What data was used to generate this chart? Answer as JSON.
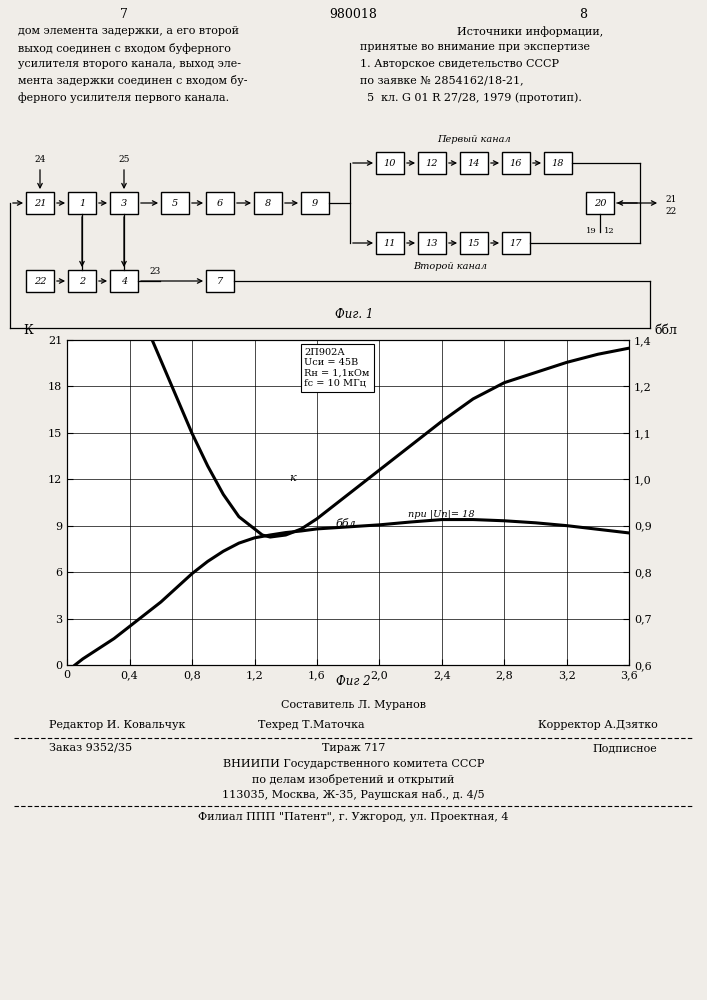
{
  "page_title": "980018",
  "page_left_num": "7",
  "page_right_num": "8",
  "left_text_lines": [
    "дом элемента задержки, а его второй",
    "выход соединен с входом буферного",
    "усилителя второго канала, выход эле-",
    "мента задержки соединен с входом бу-",
    "ферного усилителя первого канала."
  ],
  "right_text_lines": [
    "Источники информации,",
    "принятые во внимание при экспертизе",
    "1. Авторское свидетельство СССР",
    "по заявке № 2854162/18-21,",
    "  5  кл. G 01 R 27/28, 1979 (прототип)."
  ],
  "fig1_caption": "Фиг. 1",
  "fig2_caption": "Фиг 2",
  "graph_annotation": "2П902А\nUси = 45В\nRн = 1,1кОм\nfс = 10 МГц",
  "graph_label_K": "к",
  "graph_label_bbl": "ббл",
  "graph_label_pri": "при |Uп|= 18",
  "xlabel_ticks": [
    0,
    0.4,
    0.8,
    1.2,
    1.6,
    2.0,
    2.4,
    2.8,
    3.2,
    3.6
  ],
  "xticklabels": [
    "0",
    "0,4",
    "0,8",
    "1,2",
    "1,6",
    "2,0",
    "2,4",
    "2,8",
    "3,2",
    "3,6"
  ],
  "ylabel_left_ticks": [
    0,
    3,
    6,
    9,
    12,
    15,
    18,
    21
  ],
  "ylabel_left_labels": [
    "0",
    "3",
    "6",
    "9",
    "12",
    "15",
    "18",
    "21"
  ],
  "ylabel_right_ticks": [
    0,
    3,
    6,
    9,
    12,
    15,
    18,
    21
  ],
  "ylabel_right_labels": [
    "0,6",
    "0,7",
    "0,8",
    "0,9",
    "1,0",
    "1,1",
    "1,2",
    "1,4"
  ],
  "ylabel_left_label": "К",
  "ylabel_right_label": "ббл",
  "staff_line1": "Составитель Л. Муранов",
  "staff_line2_left": "Редактор И. Ковальчук",
  "staff_line2_mid": "Техред Т.Маточка",
  "staff_line2_right": "Корректор А.Дзятко",
  "order_line": "Заказ 9352/35",
  "order_mid": "Тираж 717",
  "order_right": "Подписное",
  "org_line1": "ВНИИПИ Государственного комитета СССР",
  "org_line2": "по делам изобретений и открытий",
  "org_line3": "113035, Москва, Ж-35, Раушская наб., д. 4/5",
  "filial_line": "Филиал ППП \"Патент\", г. Ужгород, ул. Проектная, 4",
  "bg_color": "#f0ede8",
  "line_color": "#000000"
}
